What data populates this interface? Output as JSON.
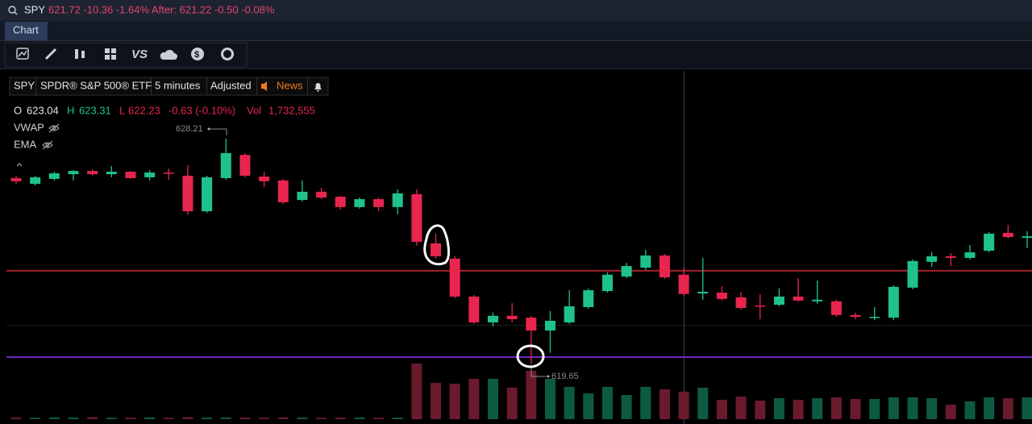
{
  "header": {
    "symbol": "SPY",
    "quote": "621.72 -10.36 -1.64% After: 621.22 -0.50 -0.08%"
  },
  "tabs": [
    "Chart"
  ],
  "toolbar": {
    "compare": "VS"
  },
  "symbol_bar": {
    "symbol": "SPY",
    "name": "SPDR® S&P 500® ETF",
    "interval": "5 minutes",
    "adjustment": "Adjusted",
    "news": "News"
  },
  "legend": {
    "open_label": "O",
    "open": "623.04",
    "high_label": "H",
    "high": "623.31",
    "low_label": "L",
    "low": "622.23",
    "change": "-0.63 (-0.10%)",
    "volume_label": "Vol",
    "volume": "1,732,555",
    "studies": [
      "VWAP",
      "EMA"
    ]
  },
  "chart_data": {
    "type": "candlestick",
    "up_color": "#1fc28c",
    "down_color": "#e8254f",
    "up_volume_color": "#0d5a42",
    "down_volume_color": "#6a1a2c",
    "ylim": [
      617.37,
      630.78
    ],
    "vlim": [
      0,
      3600000
    ],
    "open": [
      626.71,
      626.49,
      626.68,
      626.86,
      626.98,
      626.86,
      626.95,
      626.74,
      626.92,
      626.8,
      625.45,
      626.71,
      627.59,
      626.77,
      626.62,
      625.88,
      626.19,
      626.0,
      625.61,
      625.91,
      625.61,
      626.1,
      624.23,
      623.65,
      622.21,
      621.23,
      621.48,
      621.41,
      620.92,
      621.23,
      621.81,
      622.42,
      622.97,
      623.31,
      623.77,
      623.04,
      622.33,
      622.36,
      622.18,
      621.87,
      621.9,
      622.21,
      622.03,
      622.03,
      621.51,
      621.41,
      621.41,
      622.55,
      623.53,
      623.74,
      623.68,
      623.95,
      624.63,
      624.44
    ],
    "high": [
      626.8,
      626.8,
      626.95,
      627.01,
      627.04,
      627.17,
      626.98,
      627.01,
      627.07,
      627.2,
      626.8,
      628.21,
      627.66,
      626.95,
      626.68,
      626.62,
      626.34,
      626.03,
      625.97,
      625.97,
      626.28,
      626.28,
      624.6,
      623.74,
      622.27,
      621.6,
      621.96,
      621.48,
      621.66,
      622.45,
      622.52,
      623.13,
      623.49,
      623.98,
      623.83,
      623.31,
      623.68,
      622.61,
      622.39,
      622.3,
      622.52,
      622.91,
      622.82,
      622.09,
      621.6,
      621.81,
      622.64,
      623.62,
      623.89,
      623.86,
      624.17,
      624.66,
      624.93,
      624.69
    ],
    "low": [
      626.49,
      626.43,
      626.62,
      626.62,
      626.8,
      626.74,
      626.68,
      626.62,
      626.65,
      625.33,
      625.39,
      626.65,
      626.74,
      626.37,
      625.73,
      625.82,
      625.91,
      625.51,
      625.55,
      625.45,
      625.33,
      624.14,
      623.65,
      622.15,
      621.17,
      621.08,
      621.23,
      619.65,
      620.07,
      621.17,
      621.75,
      622.36,
      622.91,
      623.22,
      622.88,
      622.23,
      622.09,
      622.06,
      621.72,
      621.35,
      621.84,
      622.0,
      621.93,
      621.44,
      621.35,
      621.32,
      621.32,
      622.49,
      623.34,
      623.37,
      623.62,
      623.89,
      624.41,
      624.05
    ],
    "close": [
      626.59,
      626.74,
      626.89,
      626.98,
      626.86,
      626.95,
      626.71,
      626.92,
      626.89,
      625.45,
      626.74,
      627.66,
      626.8,
      626.59,
      625.79,
      626.19,
      625.97,
      625.61,
      625.91,
      625.61,
      626.13,
      624.29,
      623.74,
      622.21,
      621.23,
      621.48,
      621.35,
      620.92,
      621.29,
      621.84,
      622.45,
      623.04,
      623.37,
      623.77,
      622.94,
      622.31,
      622.39,
      622.12,
      621.78,
      621.84,
      622.21,
      622.06,
      622.09,
      621.51,
      621.44,
      621.44,
      622.58,
      623.56,
      623.74,
      623.68,
      623.89,
      624.6,
      624.47,
      624.5
    ],
    "volume": [
      100000,
      90000,
      110000,
      100000,
      120000,
      90000,
      100000,
      110000,
      90000,
      120000,
      100000,
      110000,
      100000,
      90000,
      110000,
      100000,
      90000,
      100000,
      110000,
      90000,
      100000,
      3500000,
      2280000,
      2230000,
      2540000,
      2540000,
      1980000,
      3040000,
      2540000,
      2030000,
      1620000,
      2030000,
      1520000,
      2030000,
      1880000,
      1732555,
      1980000,
      1220000,
      1420000,
      1170000,
      1320000,
      1220000,
      1320000,
      1370000,
      1270000,
      1270000,
      1370000,
      1370000,
      1320000,
      910000,
      1120000,
      1370000,
      1320000,
      1370000
    ],
    "price_lines": [
      {
        "value": 623.19,
        "color": "#a3202e"
      },
      {
        "value": 619.91,
        "color": "#6a2bc4"
      }
    ]
  }
}
